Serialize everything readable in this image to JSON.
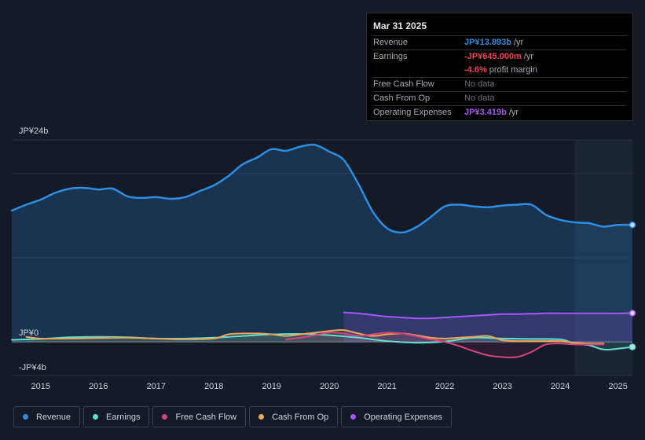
{
  "tooltip": {
    "date": "Mar 31 2025",
    "rows": [
      {
        "label": "Revenue",
        "value": "JP¥13.893b",
        "unit": "/yr",
        "color": "#2d8fe3"
      },
      {
        "label": "Earnings",
        "value": "-JP¥645.000m",
        "unit": "/yr",
        "color": "#f0434f"
      },
      {
        "label": "",
        "value": "-4.6%",
        "unit": "profit margin",
        "color": "#f0434f"
      },
      {
        "label": "Free Cash Flow",
        "value": "No data",
        "unit": "",
        "color": "#6b717d"
      },
      {
        "label": "Cash From Op",
        "value": "No data",
        "unit": "",
        "color": "#6b717d"
      },
      {
        "label": "Operating Expenses",
        "value": "JP¥3.419b",
        "unit": "/yr",
        "color": "#a855f7"
      }
    ]
  },
  "legend": [
    {
      "label": "Revenue",
      "color": "#2d8fe3"
    },
    {
      "label": "Earnings",
      "color": "#5ee0cc"
    },
    {
      "label": "Free Cash Flow",
      "color": "#d6457e"
    },
    {
      "label": "Cash From Op",
      "color": "#e8a857"
    },
    {
      "label": "Operating Expenses",
      "color": "#a855f7"
    }
  ],
  "chart_data": {
    "type": "area",
    "unit": "JP¥b",
    "ylim": [
      -4,
      24
    ],
    "y_tick_labels": [
      {
        "label": "JP¥24b",
        "value": 24
      },
      {
        "label": "JP¥0",
        "value": 0
      },
      {
        "label": "-JP¥4b",
        "value": -4
      }
    ],
    "x_ticks": [
      2015,
      2016,
      2017,
      2018,
      2019,
      2020,
      2021,
      2022,
      2023,
      2024,
      2025
    ],
    "x_range": [
      2014.5,
      2025.25
    ],
    "forecast_start": 2024.25,
    "series": [
      {
        "name": "Revenue",
        "color": "#2d8fe3",
        "x": [
          2014.5,
          2014.75,
          2015,
          2015.25,
          2015.5,
          2015.75,
          2016,
          2016.25,
          2016.5,
          2016.75,
          2017,
          2017.25,
          2017.5,
          2017.75,
          2018,
          2018.25,
          2018.5,
          2018.75,
          2019,
          2019.25,
          2019.5,
          2019.75,
          2020,
          2020.25,
          2020.5,
          2020.75,
          2021,
          2021.25,
          2021.5,
          2021.75,
          2022,
          2022.25,
          2022.5,
          2022.75,
          2023,
          2023.25,
          2023.5,
          2023.75,
          2024,
          2024.25,
          2024.5,
          2024.75,
          2025,
          2025.25
        ],
        "values": [
          15.6,
          16.3,
          16.9,
          17.7,
          18.2,
          18.3,
          18.1,
          18.2,
          17.3,
          17.1,
          17.2,
          17.0,
          17.2,
          17.9,
          18.6,
          19.7,
          21.1,
          21.9,
          22.9,
          22.7,
          23.2,
          23.4,
          22.6,
          21.6,
          18.8,
          15.5,
          13.5,
          13.0,
          13.6,
          14.8,
          16.1,
          16.3,
          16.1,
          16.0,
          16.2,
          16.3,
          16.3,
          15.1,
          14.5,
          14.2,
          14.1,
          13.7,
          13.9,
          13.9
        ]
      },
      {
        "name": "Earnings",
        "color": "#5ee0cc",
        "x": [
          2014.5,
          2015,
          2015.5,
          2016,
          2016.5,
          2017,
          2017.5,
          2018,
          2018.5,
          2019,
          2019.5,
          2020,
          2020.5,
          2021,
          2021.5,
          2022,
          2022.5,
          2023,
          2023.5,
          2024,
          2024.25,
          2024.5,
          2024.75,
          2025,
          2025.25
        ],
        "values": [
          0.25,
          0.35,
          0.55,
          0.6,
          0.55,
          0.4,
          0.4,
          0.5,
          0.7,
          0.9,
          0.95,
          0.8,
          0.5,
          0.1,
          -0.1,
          0.05,
          0.5,
          0.4,
          0.35,
          0.3,
          -0.2,
          -0.4,
          -0.9,
          -0.8,
          -0.6
        ]
      },
      {
        "name": "Free Cash Flow",
        "color": "#d6457e",
        "x": [
          2019.25,
          2019.5,
          2019.75,
          2020,
          2020.25,
          2020.5,
          2020.75,
          2021,
          2021.25,
          2021.5,
          2021.75,
          2022,
          2022.25,
          2022.5,
          2022.75,
          2023,
          2023.25,
          2023.5,
          2023.75,
          2024,
          2024.25,
          2024.5,
          2024.75
        ],
        "values": [
          0.3,
          0.5,
          0.8,
          1.1,
          1.0,
          0.7,
          0.9,
          1.1,
          1.0,
          0.7,
          0.3,
          0.0,
          -0.5,
          -1.1,
          -1.6,
          -1.8,
          -1.8,
          -1.2,
          -0.3,
          -0.2,
          -0.3,
          -0.3,
          -0.3
        ]
      },
      {
        "name": "Cash From Op",
        "color": "#e8a857",
        "x": [
          2014.75,
          2015,
          2015.5,
          2016,
          2016.5,
          2017,
          2017.5,
          2018,
          2018.25,
          2018.5,
          2018.75,
          2019,
          2019.25,
          2019.5,
          2019.75,
          2020,
          2020.25,
          2020.5,
          2020.75,
          2021,
          2021.25,
          2021.5,
          2021.75,
          2022,
          2022.25,
          2022.5,
          2022.75,
          2023,
          2023.25,
          2023.5,
          2023.75,
          2024,
          2024.25,
          2024.5,
          2024.75
        ],
        "values": [
          0.6,
          0.4,
          0.4,
          0.45,
          0.5,
          0.4,
          0.3,
          0.4,
          0.9,
          1.0,
          1.0,
          0.9,
          0.7,
          0.9,
          1.1,
          1.3,
          1.4,
          1.0,
          0.7,
          0.9,
          1.0,
          0.8,
          0.5,
          0.4,
          0.5,
          0.6,
          0.7,
          0.2,
          0.1,
          0.1,
          0.1,
          0.1,
          -0.1,
          -0.2,
          -0.2
        ]
      },
      {
        "name": "Operating Expenses",
        "color": "#a855f7",
        "x": [
          2020.25,
          2020.5,
          2020.75,
          2021,
          2021.25,
          2021.5,
          2021.75,
          2022,
          2022.25,
          2022.5,
          2022.75,
          2023,
          2023.25,
          2023.5,
          2023.75,
          2024,
          2024.25,
          2024.5,
          2024.75,
          2025,
          2025.25
        ],
        "values": [
          3.5,
          3.4,
          3.2,
          3.0,
          2.9,
          2.8,
          2.8,
          2.9,
          3.0,
          3.1,
          3.2,
          3.3,
          3.3,
          3.35,
          3.4,
          3.4,
          3.4,
          3.4,
          3.4,
          3.38,
          3.42
        ]
      }
    ]
  }
}
